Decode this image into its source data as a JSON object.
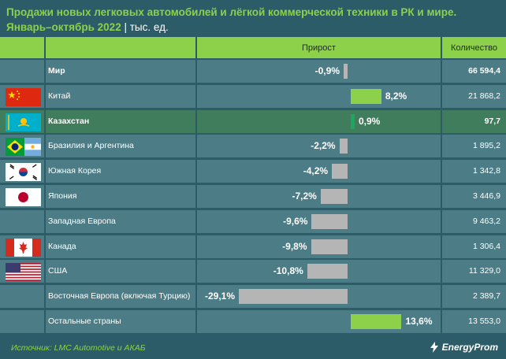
{
  "title": {
    "line1": "Продажи новых легковых автомобилей и лёгкой коммерческой техники в РК и мире.",
    "line2": "Январь–октябрь 2022",
    "separator": "|",
    "unit": "тыс. ед."
  },
  "header": {
    "growth": "Прирост",
    "quantity": "Количество"
  },
  "colors": {
    "positive": "#8dd14a",
    "negative": "#b5b5b5",
    "kazakhstan": "#1aa85a",
    "highlight_row": "#3f7d5c",
    "background": "#2c5c68",
    "row": "#4c7c86"
  },
  "chart_data": {
    "type": "bar",
    "title": "Продажи новых легковых автомобилей и лёгкой коммерческой техники в РК и мире. Январь–октябрь 2022",
    "unit": "тыс. ед.",
    "columns": [
      "Прирост",
      "Количество"
    ],
    "rows": [
      {
        "name": "Мир",
        "growth": -0.9,
        "growth_label": "-0,9%",
        "quantity": 66594.4,
        "quantity_label": "66 594,4",
        "bold": true,
        "flag": "",
        "highlight": false
      },
      {
        "name": "Китай",
        "growth": 8.2,
        "growth_label": "8,2%",
        "quantity": 21868.2,
        "quantity_label": "21 868,2",
        "bold": false,
        "flag": "china-flag-icon",
        "highlight": false
      },
      {
        "name": "Казахстан",
        "growth": 0.9,
        "growth_label": "0,9%",
        "quantity": 97.7,
        "quantity_label": "97,7",
        "bold": true,
        "flag": "kazakhstan-flag-icon",
        "highlight": true
      },
      {
        "name": "Бразилия и Аргентина",
        "growth": -2.2,
        "growth_label": "-2,2%",
        "quantity": 1895.2,
        "quantity_label": "1 895,2",
        "bold": false,
        "flag": "brazil-argentina-flag-icon",
        "highlight": false
      },
      {
        "name": "Южная Корея",
        "growth": -4.2,
        "growth_label": "-4,2%",
        "quantity": 1342.8,
        "quantity_label": "1 342,8",
        "bold": false,
        "flag": "south-korea-flag-icon",
        "highlight": false
      },
      {
        "name": "Япония",
        "growth": -7.2,
        "growth_label": "-7,2%",
        "quantity": 3446.9,
        "quantity_label": "3 446,9",
        "bold": false,
        "flag": "japan-flag-icon",
        "highlight": false
      },
      {
        "name": "Западная Европа",
        "growth": -9.6,
        "growth_label": "-9,6%",
        "quantity": 9463.2,
        "quantity_label": "9 463,2",
        "bold": false,
        "flag": "",
        "highlight": false
      },
      {
        "name": "Канада",
        "growth": -9.8,
        "growth_label": "-9,8%",
        "quantity": 1306.4,
        "quantity_label": "1 306,4",
        "bold": false,
        "flag": "canada-flag-icon",
        "highlight": false
      },
      {
        "name": "США",
        "growth": -10.8,
        "growth_label": "-10,8%",
        "quantity": 11329.0,
        "quantity_label": "11 329,0",
        "bold": false,
        "flag": "usa-flag-icon",
        "highlight": false
      },
      {
        "name": "Восточная Европа (включая Турцию)",
        "growth": -29.1,
        "growth_label": "-29,1%",
        "quantity": 2389.7,
        "quantity_label": "2 389,7",
        "bold": false,
        "flag": "",
        "highlight": false
      },
      {
        "name": "Остальные страны",
        "growth": 13.6,
        "growth_label": "13,6%",
        "quantity": 13553.0,
        "quantity_label": "13 553,0",
        "bold": false,
        "flag": "",
        "highlight": false
      }
    ]
  },
  "footer": {
    "source": "Источник: LMC Automotive и АКАБ",
    "logo_text": "EnergyProm"
  }
}
